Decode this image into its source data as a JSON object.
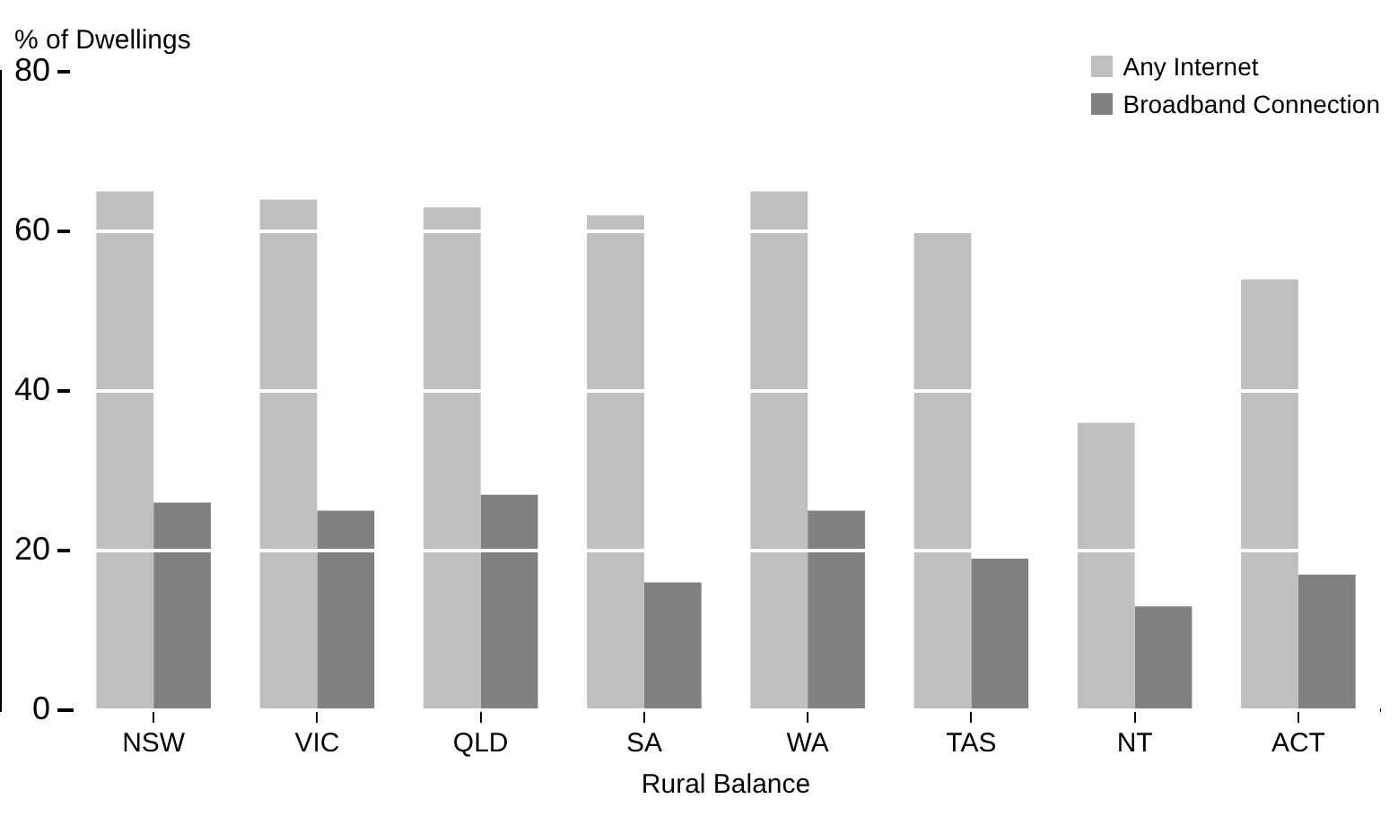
{
  "chart_data": {
    "type": "bar",
    "ylabel": "% of Dwellings",
    "xlabel": "Rural Balance",
    "categories": [
      "NSW",
      "VIC",
      "QLD",
      "SA",
      "WA",
      "TAS",
      "NT",
      "ACT"
    ],
    "series": [
      {
        "name": "Any Internet",
        "color": "#bfbfbf",
        "values": [
          65,
          64,
          63,
          62,
          65,
          60,
          36,
          54
        ]
      },
      {
        "name": "Broadband Connection",
        "color": "#808080",
        "values": [
          26,
          25,
          27,
          16,
          25,
          19,
          13,
          17
        ]
      }
    ],
    "ylim": [
      0,
      80
    ],
    "yticks": [
      0,
      20,
      40,
      60,
      80
    ],
    "grid": "y",
    "legend": "top right"
  }
}
